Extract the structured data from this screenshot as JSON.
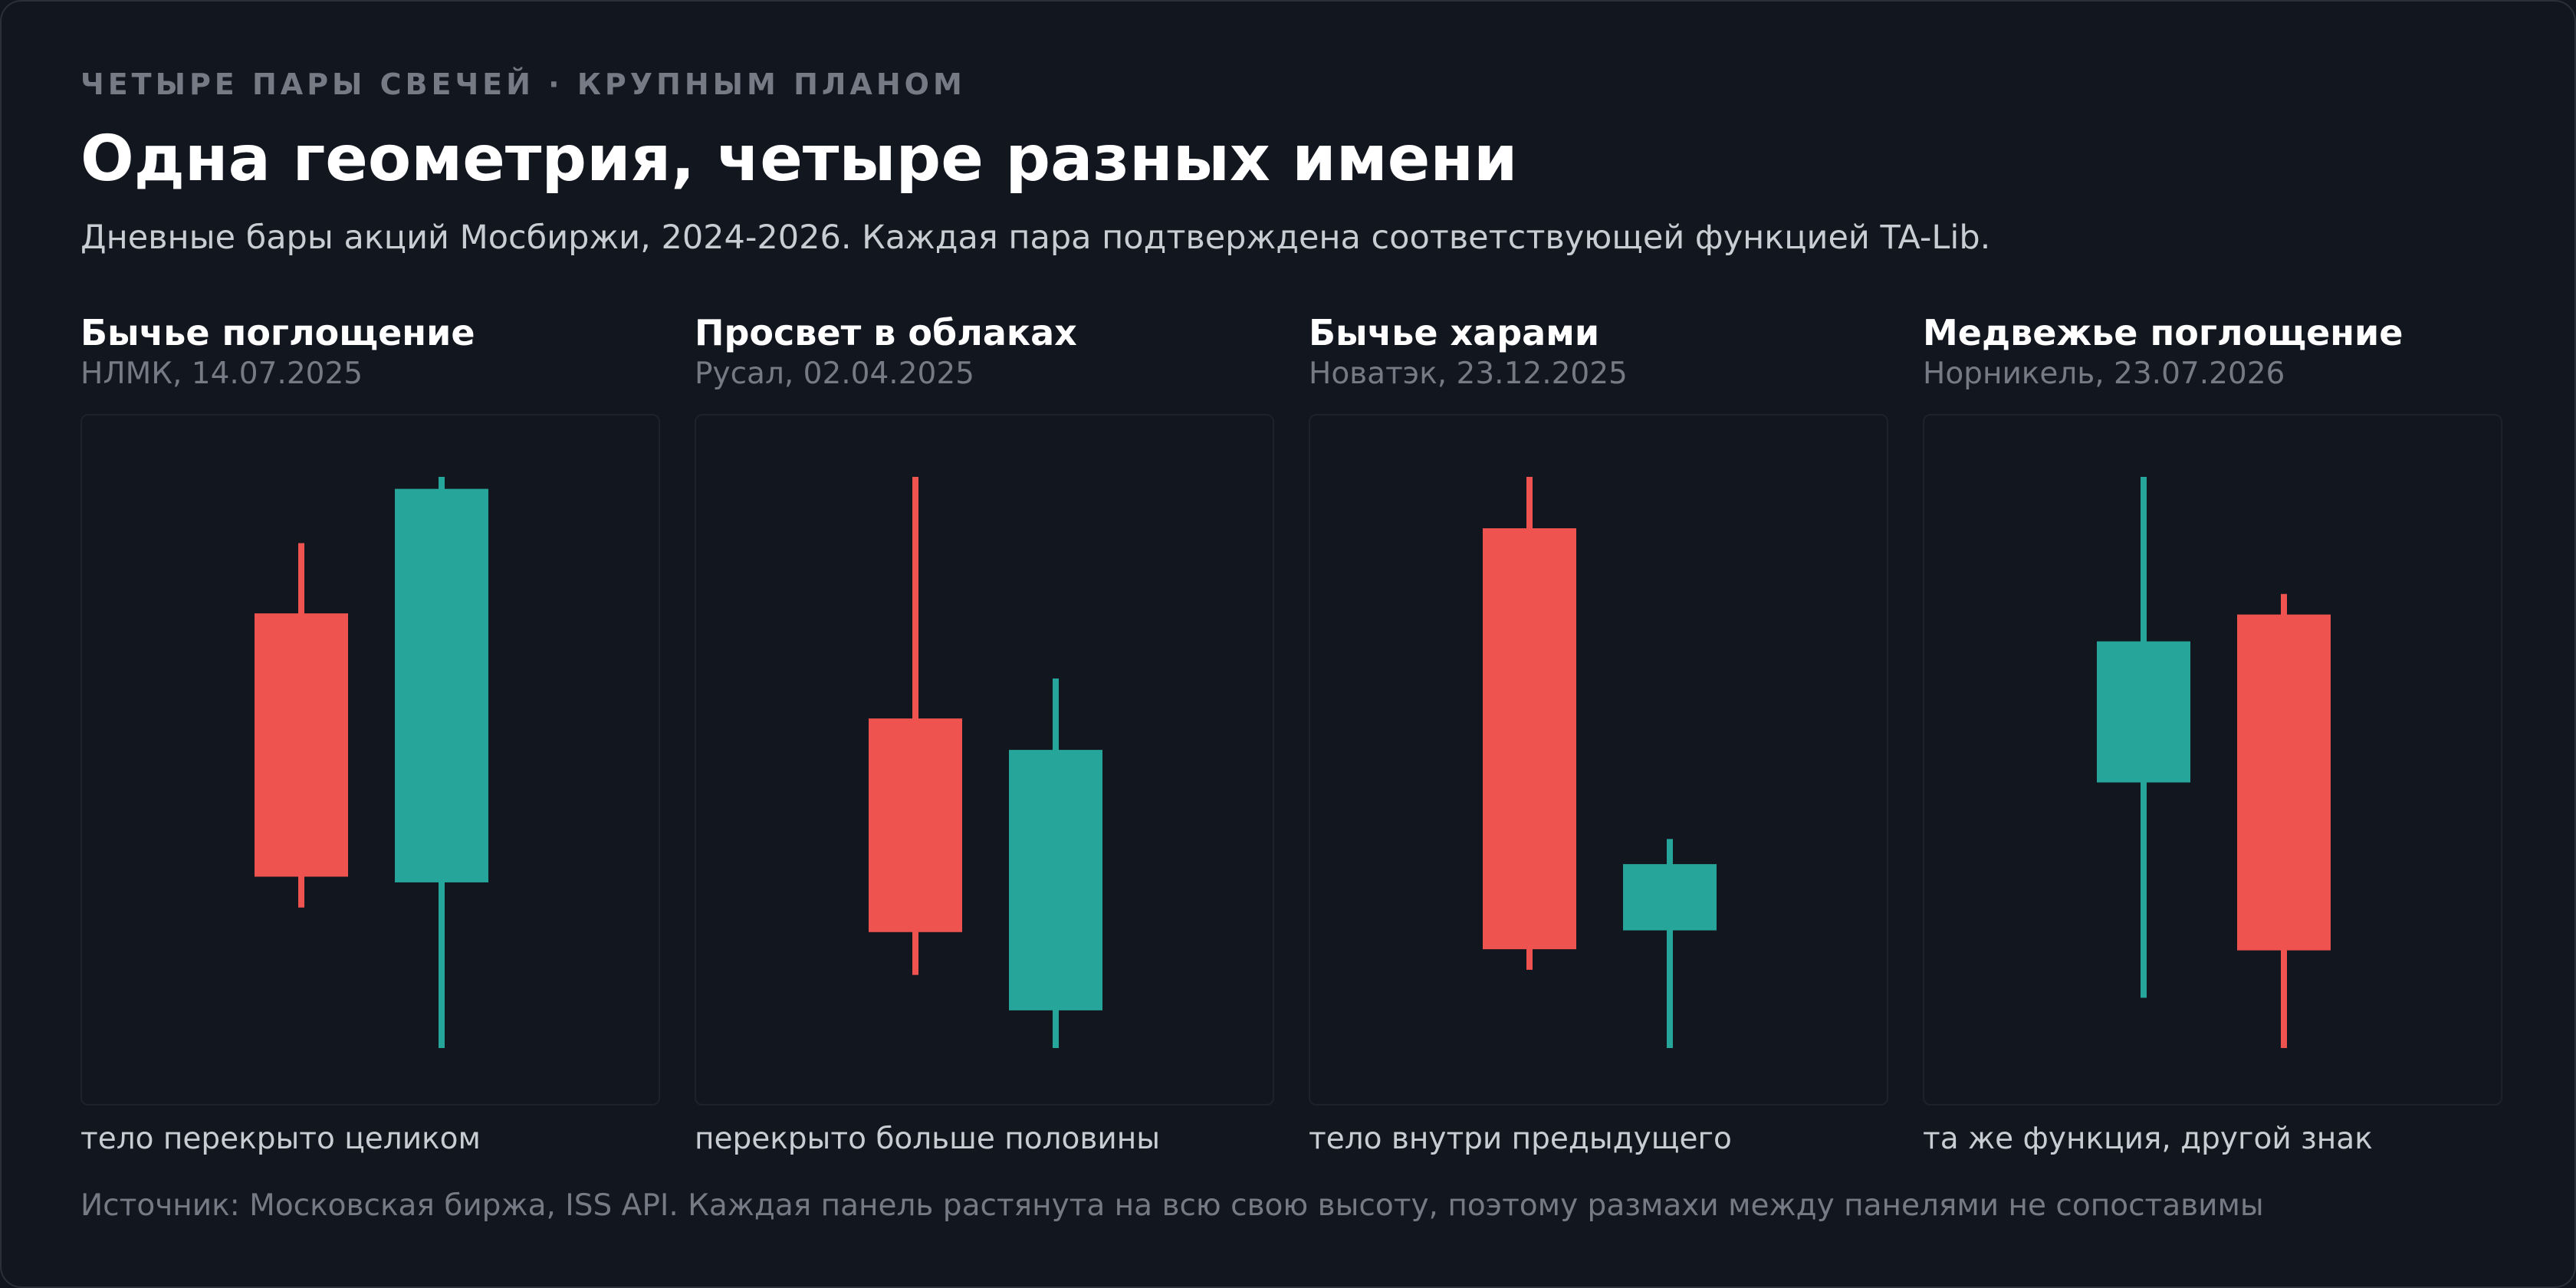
{
  "header": {
    "kicker": "ЧЕТЫРЕ ПАРЫ СВЕЧЕЙ · КРУПНЫМ ПЛАНОМ",
    "title": "Одна геометрия, четыре разных имени",
    "subtitle": "Дневные бары акций Мосбиржи, 2024-2026. Каждая пара подтверждена соответствующей функцией TA-Lib."
  },
  "footer": {
    "source": "Источник: Московская биржа, ISS API. Каждая панель растянута на всю свою высоту, поэтому размахи между панелями не сопоставимы"
  },
  "colors": {
    "bullish": "#26a69a",
    "bearish": "#ef5350",
    "background": "#12161f",
    "panel_border": "#1d222b"
  },
  "panels": [
    {
      "title": "Бычье поглощение",
      "subtitle": "НЛМК, 14.07.2025",
      "caption": "тело перекрыто целиком"
    },
    {
      "title": "Просвет в облаках",
      "subtitle": "Русал, 02.04.2025",
      "caption": "перекрыто больше половины"
    },
    {
      "title": "Бычье харами",
      "subtitle": "Новатэк, 23.12.2025",
      "caption": "тело внутри предыдущего"
    },
    {
      "title": "Медвежье поглощение",
      "subtitle": "Норникель, 23.07.2026",
      "caption": "та же функция, другой знак"
    }
  ],
  "chart_data": [
    {
      "type": "candlestick",
      "title": "Бычье поглощение",
      "normalized": true,
      "ylim": [
        0,
        1
      ],
      "candles": [
        {
          "open": 0.761,
          "high": 0.884,
          "low": 0.246,
          "close": 0.3,
          "direction": "bearish"
        },
        {
          "open": 0.29,
          "high": 1.0,
          "low": 0.0,
          "close": 0.979,
          "direction": "bullish"
        }
      ]
    },
    {
      "type": "candlestick",
      "title": "Просвет в облаках",
      "normalized": true,
      "ylim": [
        0,
        1
      ],
      "candles": [
        {
          "open": 0.577,
          "high": 1.0,
          "low": 0.128,
          "close": 0.203,
          "direction": "bearish"
        },
        {
          "open": 0.066,
          "high": 0.647,
          "low": 0.0,
          "close": 0.522,
          "direction": "bullish"
        }
      ]
    },
    {
      "type": "candlestick",
      "title": "Бычье харами",
      "normalized": true,
      "ylim": [
        0,
        1
      ],
      "candles": [
        {
          "open": 0.91,
          "high": 1.0,
          "low": 0.137,
          "close": 0.173,
          "direction": "bearish"
        },
        {
          "open": 0.206,
          "high": 0.366,
          "low": 0.0,
          "close": 0.322,
          "direction": "bullish"
        }
      ]
    },
    {
      "type": "candlestick",
      "title": "Медвежье поглощение",
      "normalized": true,
      "ylim": [
        0,
        1
      ],
      "candles": [
        {
          "open": 0.465,
          "high": 1.0,
          "low": 0.088,
          "close": 0.712,
          "direction": "bullish"
        },
        {
          "open": 0.759,
          "high": 0.795,
          "low": 0.0,
          "close": 0.171,
          "direction": "bearish"
        }
      ]
    }
  ]
}
